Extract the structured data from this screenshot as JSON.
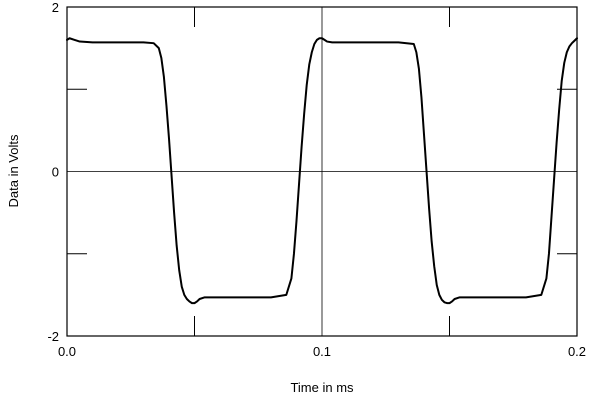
{
  "chart_data": {
    "type": "line",
    "title": "",
    "xlabel": "Time in ms",
    "ylabel": "Data in Volts",
    "xlim": [
      0.0,
      0.2
    ],
    "ylim": [
      -2,
      2
    ],
    "x_ticks": [
      0.0,
      0.1,
      0.2
    ],
    "x_tick_labels": [
      "0.0",
      "0.1",
      "0.2"
    ],
    "x_minor_ticks": [
      0.05,
      0.15
    ],
    "y_ticks": [
      -2,
      0,
      2
    ],
    "y_tick_labels": [
      "-2",
      "0",
      "2"
    ],
    "y_minor_ticks": [
      -1,
      1
    ],
    "grid": "center cross lines at x=0.1 and y=0",
    "legend": "none",
    "line_color": "#000000",
    "series": [
      {
        "x": [
          0.0,
          0.001,
          0.003,
          0.005,
          0.01,
          0.015,
          0.02,
          0.025,
          0.03,
          0.034,
          0.036,
          0.037,
          0.038,
          0.039,
          0.04,
          0.041,
          0.042,
          0.043,
          0.044,
          0.045,
          0.046,
          0.047,
          0.048,
          0.049,
          0.05,
          0.051,
          0.052,
          0.054,
          0.056,
          0.06,
          0.07,
          0.08,
          0.086,
          0.088,
          0.089,
          0.09,
          0.091,
          0.092,
          0.093,
          0.094,
          0.095,
          0.096,
          0.097,
          0.098,
          0.099,
          0.1,
          0.101,
          0.102,
          0.104,
          0.106,
          0.11,
          0.12,
          0.13,
          0.136,
          0.137,
          0.138,
          0.139,
          0.14,
          0.141,
          0.142,
          0.143,
          0.144,
          0.145,
          0.146,
          0.147,
          0.148,
          0.149,
          0.15,
          0.151,
          0.152,
          0.154,
          0.156,
          0.16,
          0.17,
          0.18,
          0.186,
          0.188,
          0.189,
          0.19,
          0.191,
          0.192,
          0.193,
          0.194,
          0.195,
          0.196,
          0.197,
          0.198,
          0.199,
          0.2
        ],
        "y": [
          1.6,
          1.62,
          1.6,
          1.58,
          1.57,
          1.57,
          1.57,
          1.57,
          1.57,
          1.56,
          1.5,
          1.38,
          1.15,
          0.8,
          0.4,
          -0.05,
          -0.5,
          -0.9,
          -1.2,
          -1.4,
          -1.5,
          -1.55,
          -1.58,
          -1.6,
          -1.6,
          -1.58,
          -1.55,
          -1.53,
          -1.53,
          -1.53,
          -1.53,
          -1.53,
          -1.5,
          -1.3,
          -1.0,
          -0.6,
          -0.15,
          0.3,
          0.7,
          1.05,
          1.3,
          1.45,
          1.55,
          1.6,
          1.62,
          1.62,
          1.6,
          1.58,
          1.57,
          1.57,
          1.57,
          1.57,
          1.57,
          1.55,
          1.45,
          1.25,
          0.9,
          0.45,
          0.0,
          -0.45,
          -0.85,
          -1.15,
          -1.38,
          -1.5,
          -1.56,
          -1.59,
          -1.6,
          -1.6,
          -1.58,
          -1.55,
          -1.53,
          -1.53,
          -1.53,
          -1.53,
          -1.53,
          -1.5,
          -1.3,
          -1.0,
          -0.55,
          -0.1,
          0.35,
          0.75,
          1.1,
          1.32,
          1.45,
          1.52,
          1.56,
          1.59,
          1.62
        ]
      }
    ]
  }
}
